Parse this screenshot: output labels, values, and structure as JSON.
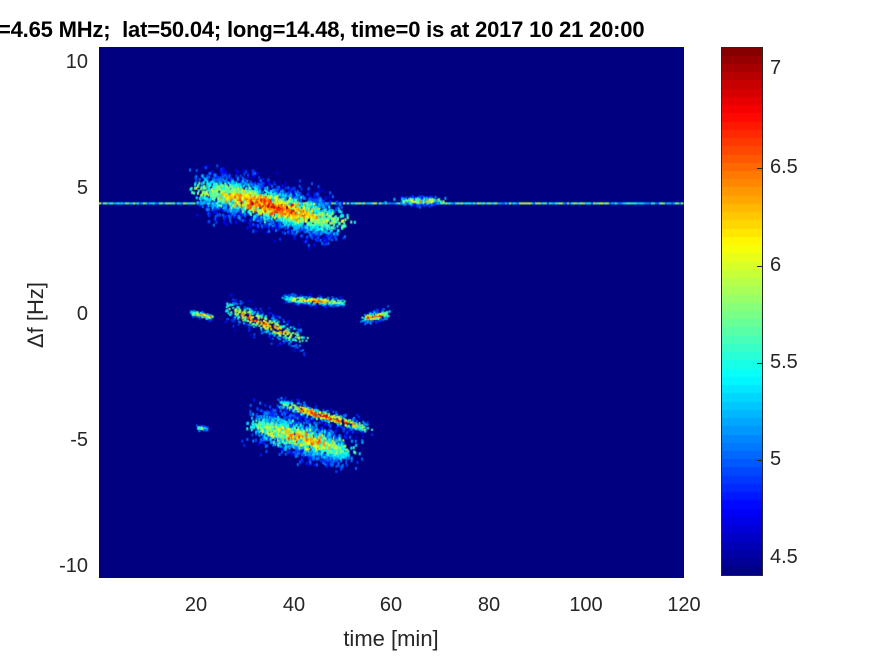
{
  "chart_data": {
    "type": "heatmap",
    "title": "=4.65 MHz;  lat=50.04; long=14.48, time=0 is at 2017 10 21 20:00",
    "xlabel": "time [min]",
    "ylabel": "Δf [Hz]",
    "xlim": [
      0,
      120
    ],
    "ylim": [
      -10.45,
      10.6
    ],
    "xticks": [
      "20",
      "40",
      "60",
      "80",
      "100",
      "120"
    ],
    "yticks": [
      "10",
      "5",
      "0",
      "-5",
      "-10"
    ],
    "colormap": "jet",
    "clim": [
      4.41,
      7.11
    ],
    "colorbar_ticks": [
      "7",
      "6.5",
      "6",
      "5.5",
      "5",
      "4.5"
    ],
    "background_value": 4.41,
    "features": [
      {
        "kind": "line",
        "t": [
          0,
          120
        ],
        "df": [
          4.4,
          4.4
        ],
        "peak": 6.0,
        "spread": 0.05
      },
      {
        "kind": "blob",
        "t": [
          22,
          48
        ],
        "df": [
          5.0,
          3.7
        ],
        "peak": 6.9,
        "spread": 0.45
      },
      {
        "kind": "blob",
        "t": [
          64,
          67
        ],
        "df": [
          4.55,
          4.55
        ],
        "peak": 6.3,
        "spread": 0.08
      },
      {
        "kind": "streak",
        "t": [
          19,
          23
        ],
        "df": [
          0.1,
          -0.1
        ],
        "peak": 6.8,
        "spread": 0.07
      },
      {
        "kind": "streak",
        "t": [
          26,
          42
        ],
        "df": [
          0.3,
          -1.0
        ],
        "peak": 6.7,
        "spread": 0.25
      },
      {
        "kind": "streak",
        "t": [
          38,
          50
        ],
        "df": [
          0.65,
          0.5
        ],
        "peak": 6.6,
        "spread": 0.1
      },
      {
        "kind": "streak",
        "t": [
          54,
          59
        ],
        "df": [
          -0.15,
          0.05
        ],
        "peak": 6.8,
        "spread": 0.12
      },
      {
        "kind": "streak",
        "t": [
          37,
          55
        ],
        "df": [
          -3.5,
          -4.5
        ],
        "peak": 6.9,
        "spread": 0.15
      },
      {
        "kind": "blob",
        "t": [
          33,
          50
        ],
        "df": [
          -4.3,
          -5.4
        ],
        "peak": 6.5,
        "spread": 0.35
      },
      {
        "kind": "streak",
        "t": [
          20,
          22
        ],
        "df": [
          -4.45,
          -4.5
        ],
        "peak": 6.0,
        "spread": 0.05
      }
    ]
  }
}
